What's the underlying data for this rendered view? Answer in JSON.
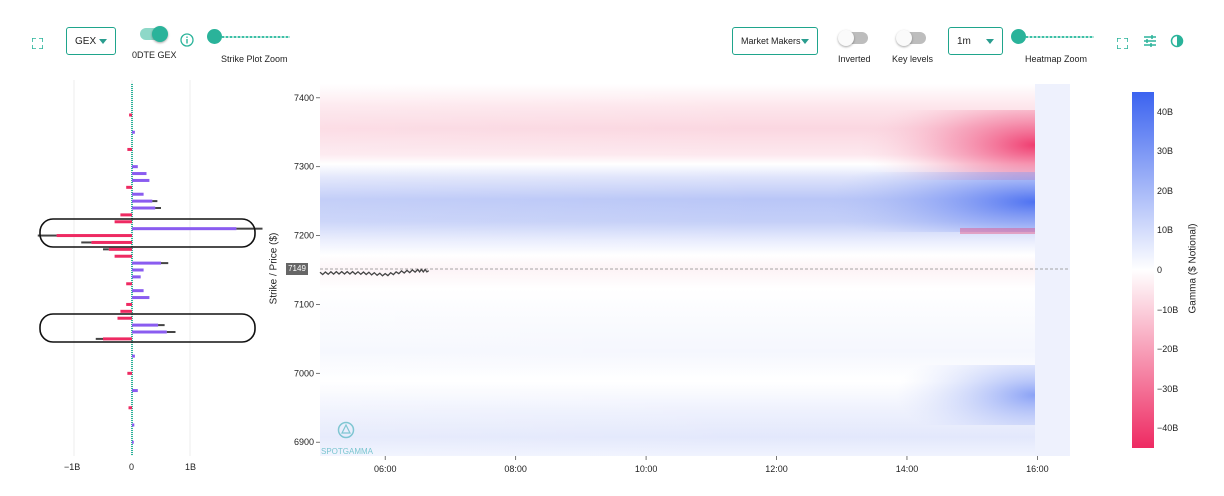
{
  "toolbar": {
    "metric_select": "GEX",
    "odte_label": "0DTE GEX",
    "strike_zoom_label": "Strike Plot Zoom",
    "participant_select": "Market Makers",
    "inverted_label": "Inverted",
    "key_levels_label": "Key levels",
    "interval_select": "1m",
    "heatmap_zoom_label": "Heatmap Zoom",
    "odte_toggle_on": true,
    "inverted_on": false,
    "key_levels_on": false
  },
  "strike_plot": {
    "x_ticks": [
      "−1B",
      "0",
      "1B"
    ]
  },
  "heatmap": {
    "y_axis_label": "Strike / Price ($)",
    "y_ticks": [
      "7400",
      "7300",
      "7200",
      "7100",
      "7000",
      "6900"
    ],
    "x_ticks": [
      "06:00",
      "08:00",
      "10:00",
      "12:00",
      "14:00",
      "16:00"
    ],
    "current_price_label": "7149",
    "watermark": "SPOTGAMMA"
  },
  "colorbar": {
    "label": "Gamma ($ Notional)",
    "ticks": [
      "40B",
      "30B",
      "20B",
      "10B",
      "0",
      "−10B",
      "−20B",
      "−30B",
      "−40B"
    ],
    "positive_color": "#3b63f0",
    "negative_color": "#ee2a62"
  },
  "chart_data": {
    "type": "heatmap",
    "ylabel": "Strike / Price ($)",
    "xlabel": "",
    "ylim": [
      6880,
      7420
    ],
    "x_time_range": [
      "05:00",
      "16:30"
    ],
    "color_scale": {
      "min": -45,
      "max": 45,
      "unit": "B",
      "label": "Gamma ($ Notional)"
    },
    "bands": [
      {
        "strike_from": 7330,
        "strike_to": 7420,
        "sign": "negative",
        "peak_B": -30
      },
      {
        "strike_from": 7230,
        "strike_to": 7300,
        "sign": "positive",
        "peak_B": 30
      },
      {
        "strike_from": 7180,
        "strike_to": 7230,
        "sign": "negative",
        "peak_B": -10
      },
      {
        "strike_from": 6900,
        "strike_to": 7000,
        "sign": "positive",
        "peak_B": 15
      }
    ],
    "price_series": {
      "times": [
        "05:00",
        "05:15",
        "05:30",
        "05:45",
        "06:00",
        "06:15",
        "06:30",
        "06:40"
      ],
      "values": [
        7145,
        7146,
        7146,
        7145,
        7143,
        7147,
        7149,
        7149
      ]
    },
    "current_price": 7149,
    "strike_gex": {
      "x_ticks": [
        "-1B",
        "0",
        "1B"
      ],
      "strikes": [
        7375,
        7350,
        7325,
        7300,
        7290,
        7280,
        7270,
        7260,
        7250,
        7240,
        7230,
        7220,
        7210,
        7200,
        7190,
        7180,
        7170,
        7160,
        7150,
        7140,
        7130,
        7120,
        7110,
        7100,
        7090,
        7080,
        7070,
        7060,
        7050,
        7025,
        7000,
        6975,
        6950,
        6925,
        6900
      ],
      "values": [
        -0.05,
        0.05,
        -0.08,
        0.1,
        0.25,
        0.3,
        -0.1,
        0.2,
        0.35,
        0.4,
        -0.2,
        -0.3,
        1.8,
        -1.3,
        -0.7,
        -0.4,
        -0.3,
        0.5,
        0.2,
        0.15,
        -0.1,
        0.2,
        0.3,
        -0.1,
        -0.2,
        -0.25,
        0.45,
        0.6,
        -0.5,
        0.05,
        -0.08,
        0.1,
        -0.06,
        0.04,
        0.03
      ]
    }
  }
}
